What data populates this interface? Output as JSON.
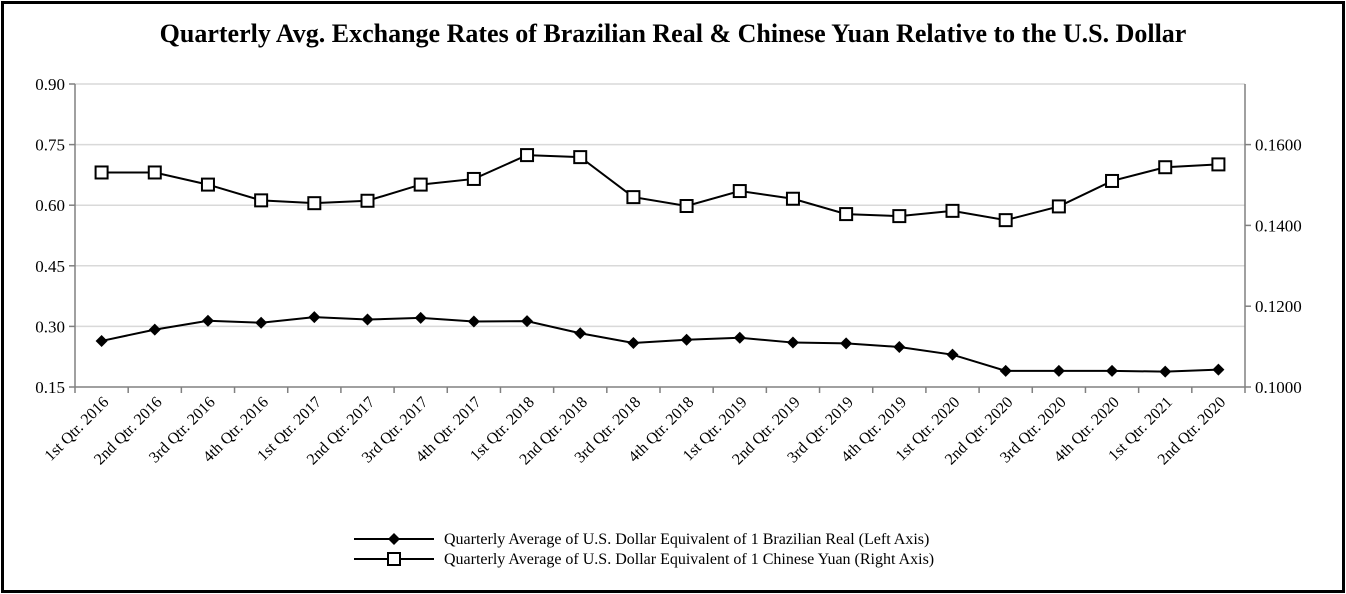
{
  "chart_data": {
    "type": "line",
    "title": "Quarterly Avg. Exchange Rates of Brazilian Real & Chinese Yuan Relative to the U.S. Dollar",
    "categories": [
      "1st Qtr. 2016",
      "2nd Qtr. 2016",
      "3rd Qtr. 2016",
      "4th Qtr. 2016",
      "1st Qtr. 2017",
      "2nd Qtr. 2017",
      "3rd Qtr. 2017",
      "4th Qtr. 2017",
      "1st Qtr. 2018",
      "2nd Qtr. 2018",
      "3rd Qtr. 2018",
      "4th Qtr. 2018",
      "1st Qtr. 2019",
      "2nd Qtr. 2019",
      "3rd Qtr. 2019",
      "4th Qtr. 2019",
      "1st Qtr. 2020",
      "2nd Qtr. 2020",
      "3rd Qtr. 2020",
      "4th Qtr. 2020",
      "1st Qtr. 2021",
      "2nd Qtr. 2020"
    ],
    "left_axis": {
      "ylim": [
        0.15,
        0.9
      ],
      "ticks": [
        "0.15",
        "0.30",
        "0.45",
        "0.60",
        "0.75",
        "0.90"
      ],
      "tick_values": [
        0.15,
        0.3,
        0.45,
        0.6,
        0.75,
        0.9
      ]
    },
    "right_axis": {
      "ylim": [
        0.1,
        0.175
      ],
      "ticks": [
        "0.1000",
        "0.1200",
        "0.1400",
        "0.1600"
      ],
      "tick_values": [
        0.1,
        0.12,
        0.14,
        0.16
      ]
    },
    "grid": true,
    "legend_position": "bottom-center",
    "series": [
      {
        "name": "Quarterly Average of U.S. Dollar Equivalent of 1 Brazilian Real (Left Axis)",
        "axis": "left",
        "marker": "diamond",
        "values": [
          0.264,
          0.292,
          0.314,
          0.309,
          0.323,
          0.317,
          0.321,
          0.312,
          0.313,
          0.283,
          0.259,
          0.267,
          0.272,
          0.26,
          0.258,
          0.249,
          0.23,
          0.19,
          0.19,
          0.19,
          0.188,
          0.193
        ]
      },
      {
        "name": "Quarterly Average of U.S. Dollar Equivalent of 1 Chinese Yuan (Right Axis)",
        "axis": "right",
        "marker": "square",
        "values": [
          0.1531,
          0.1531,
          0.1501,
          0.1462,
          0.1455,
          0.1461,
          0.1501,
          0.1515,
          0.1574,
          0.1569,
          0.147,
          0.1448,
          0.1485,
          0.1466,
          0.1428,
          0.1423,
          0.1436,
          0.1413,
          0.1447,
          0.151,
          0.1544,
          0.1551
        ]
      }
    ]
  },
  "colors": {
    "line": "#000000",
    "grid": "#d9d9d9",
    "axis": "#808080"
  }
}
